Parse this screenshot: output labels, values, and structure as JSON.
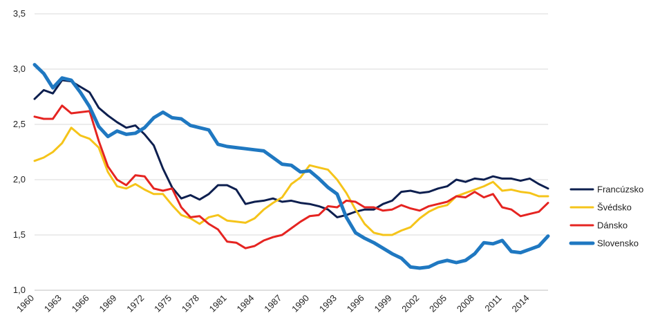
{
  "chart_data": {
    "type": "line",
    "title": "",
    "xlabel": "",
    "ylabel": "",
    "x_start": 1960,
    "x_end": 2016,
    "xtick_labels": [
      "1960",
      "1963",
      "1966",
      "1969",
      "1972",
      "1975",
      "1978",
      "1981",
      "1984",
      "1987",
      "1990",
      "1993",
      "1996",
      "1999",
      "2002",
      "2005",
      "2008",
      "2011",
      "2014"
    ],
    "ytick_labels": [
      "1,0",
      "1,5",
      "2,0",
      "2,5",
      "3,0",
      "3,5"
    ],
    "ylim": [
      1.0,
      3.5
    ],
    "y_ticks": [
      1.0,
      1.5,
      2.0,
      2.5,
      3.0,
      3.5
    ],
    "grid": true,
    "legend_position": "right",
    "series": [
      {
        "name": "Francúzsko",
        "color": "#0d1f4f",
        "values": [
          2.73,
          2.81,
          2.78,
          2.9,
          2.89,
          2.84,
          2.79,
          2.65,
          2.58,
          2.52,
          2.47,
          2.49,
          2.41,
          2.31,
          2.1,
          1.93,
          1.83,
          1.86,
          1.82,
          1.87,
          1.95,
          1.95,
          1.91,
          1.78,
          1.8,
          1.81,
          1.83,
          1.8,
          1.81,
          1.79,
          1.78,
          1.76,
          1.73,
          1.66,
          1.68,
          1.71,
          1.73,
          1.73,
          1.78,
          1.81,
          1.89,
          1.9,
          1.88,
          1.89,
          1.92,
          1.94,
          2.0,
          1.98,
          2.01,
          2.0,
          2.03,
          2.01,
          2.01,
          1.99,
          2.01,
          1.96,
          1.92
        ]
      },
      {
        "name": "Švédsko",
        "color": "#f5c41a",
        "values": [
          2.17,
          2.2,
          2.25,
          2.33,
          2.47,
          2.4,
          2.37,
          2.29,
          2.07,
          1.94,
          1.92,
          1.96,
          1.91,
          1.87,
          1.87,
          1.77,
          1.68,
          1.65,
          1.6,
          1.66,
          1.68,
          1.63,
          1.62,
          1.61,
          1.65,
          1.73,
          1.79,
          1.84,
          1.96,
          2.02,
          2.13,
          2.11,
          2.09,
          2.0,
          1.88,
          1.73,
          1.6,
          1.52,
          1.5,
          1.5,
          1.54,
          1.57,
          1.65,
          1.71,
          1.75,
          1.77,
          1.85,
          1.88,
          1.91,
          1.94,
          1.98,
          1.9,
          1.91,
          1.89,
          1.88,
          1.85,
          1.85
        ]
      },
      {
        "name": "Dánsko",
        "color": "#e52421",
        "values": [
          2.57,
          2.55,
          2.55,
          2.67,
          2.6,
          2.61,
          2.62,
          2.35,
          2.12,
          2.0,
          1.95,
          2.04,
          2.03,
          1.92,
          1.9,
          1.92,
          1.75,
          1.66,
          1.67,
          1.6,
          1.55,
          1.44,
          1.43,
          1.38,
          1.4,
          1.45,
          1.48,
          1.5,
          1.56,
          1.62,
          1.67,
          1.68,
          1.76,
          1.75,
          1.81,
          1.8,
          1.75,
          1.75,
          1.72,
          1.73,
          1.77,
          1.74,
          1.72,
          1.76,
          1.78,
          1.8,
          1.85,
          1.84,
          1.89,
          1.84,
          1.87,
          1.75,
          1.73,
          1.67,
          1.69,
          1.71,
          1.79
        ]
      },
      {
        "name": "Slovensko",
        "color": "#1f78c1",
        "values": [
          3.04,
          2.96,
          2.83,
          2.92,
          2.9,
          2.79,
          2.66,
          2.48,
          2.39,
          2.44,
          2.41,
          2.42,
          2.47,
          2.56,
          2.61,
          2.56,
          2.55,
          2.49,
          2.47,
          2.45,
          2.32,
          2.3,
          2.29,
          2.28,
          2.27,
          2.26,
          2.2,
          2.14,
          2.13,
          2.07,
          2.08,
          2.01,
          1.93,
          1.87,
          1.66,
          1.52,
          1.47,
          1.43,
          1.38,
          1.33,
          1.29,
          1.21,
          1.2,
          1.21,
          1.25,
          1.27,
          1.25,
          1.27,
          1.33,
          1.43,
          1.42,
          1.45,
          1.35,
          1.34,
          1.37,
          1.4,
          1.49
        ]
      }
    ]
  }
}
